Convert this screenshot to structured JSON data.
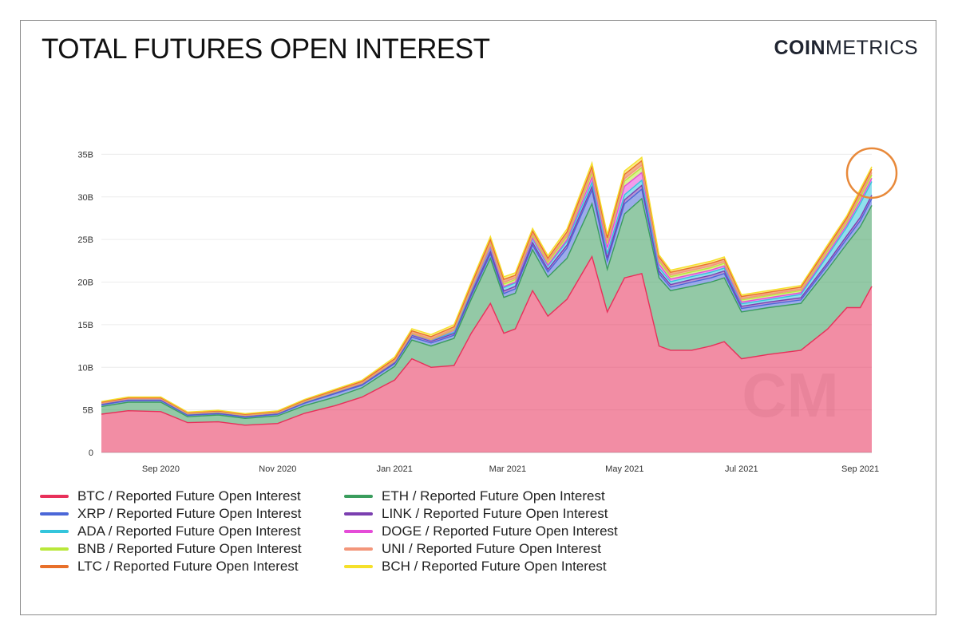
{
  "title": "TOTAL FUTURES OPEN INTEREST",
  "brand": {
    "part1": "COIN",
    "part2": "METRICS"
  },
  "watermark": "CM",
  "chart_data": {
    "type": "area",
    "stacked": true,
    "x": [
      "2020-08-01",
      "2020-08-15",
      "2020-09-01",
      "2020-09-15",
      "2020-10-01",
      "2020-10-15",
      "2020-11-01",
      "2020-11-15",
      "2020-12-01",
      "2020-12-15",
      "2021-01-01",
      "2021-01-10",
      "2021-01-20",
      "2021-02-01",
      "2021-02-10",
      "2021-02-20",
      "2021-02-27",
      "2021-03-05",
      "2021-03-14",
      "2021-03-22",
      "2021-04-01",
      "2021-04-14",
      "2021-04-22",
      "2021-05-01",
      "2021-05-10",
      "2021-05-19",
      "2021-05-25",
      "2021-06-05",
      "2021-06-15",
      "2021-06-22",
      "2021-07-01",
      "2021-07-15",
      "2021-08-01",
      "2021-08-15",
      "2021-08-25",
      "2021-09-01",
      "2021-09-07"
    ],
    "series": [
      {
        "name": "BTC / Reported Future Open Interest",
        "color": "#e8305a",
        "values": [
          4.5,
          4.9,
          4.8,
          3.5,
          3.6,
          3.2,
          3.4,
          4.6,
          5.5,
          6.5,
          8.5,
          11,
          10,
          10.2,
          14,
          17.5,
          14,
          14.5,
          19,
          16,
          18,
          23,
          16.5,
          20.5,
          21,
          12.5,
          12,
          12,
          12.5,
          13,
          11,
          11.5,
          12,
          14.5,
          17,
          17,
          19.5
        ]
      },
      {
        "name": "ETH / Reported Future Open Interest",
        "color": "#3a9d5d",
        "values": [
          0.9,
          1.0,
          1.1,
          0.7,
          0.8,
          0.8,
          0.9,
          0.9,
          1.0,
          1.1,
          1.6,
          2.2,
          2.5,
          3.2,
          4.0,
          5.3,
          4.2,
          4.2,
          4.8,
          4.6,
          4.8,
          6.2,
          5.0,
          7.5,
          8.8,
          8.0,
          7.0,
          7.5,
          7.5,
          7.5,
          5.5,
          5.5,
          5.5,
          7.0,
          7.5,
          9.5,
          9.5
        ]
      },
      {
        "name": "XRP / Reported Future Open Interest",
        "color": "#4b67d8",
        "values": [
          0.18,
          0.2,
          0.2,
          0.15,
          0.15,
          0.15,
          0.18,
          0.28,
          0.4,
          0.3,
          0.32,
          0.35,
          0.35,
          0.35,
          0.4,
          0.5,
          0.45,
          0.5,
          0.55,
          0.6,
          1.2,
          1.6,
          1.0,
          1.2,
          1.1,
          0.5,
          0.4,
          0.5,
          0.5,
          0.5,
          0.4,
          0.4,
          0.4,
          0.5,
          0.6,
          0.7,
          0.8
        ]
      },
      {
        "name": "LINK / Reported Future Open Interest",
        "color": "#7b3fb0",
        "values": [
          0.1,
          0.1,
          0.1,
          0.1,
          0.1,
          0.1,
          0.1,
          0.1,
          0.12,
          0.12,
          0.15,
          0.2,
          0.2,
          0.22,
          0.25,
          0.3,
          0.3,
          0.3,
          0.3,
          0.3,
          0.35,
          0.4,
          0.35,
          0.45,
          0.45,
          0.3,
          0.3,
          0.3,
          0.3,
          0.3,
          0.25,
          0.25,
          0.25,
          0.3,
          0.35,
          0.4,
          0.4
        ]
      },
      {
        "name": "ADA / Reported Future Open Interest",
        "color": "#34c5dc",
        "values": [
          0.05,
          0.05,
          0.05,
          0.05,
          0.05,
          0.05,
          0.05,
          0.05,
          0.06,
          0.06,
          0.08,
          0.1,
          0.1,
          0.15,
          0.3,
          0.4,
          0.4,
          0.4,
          0.45,
          0.4,
          0.45,
          0.5,
          0.5,
          0.6,
          0.6,
          0.4,
          0.35,
          0.35,
          0.35,
          0.35,
          0.3,
          0.3,
          0.4,
          0.8,
          1.0,
          1.6,
          1.6
        ]
      },
      {
        "name": "DOGE / Reported Future Open Interest",
        "color": "#e54cd8",
        "values": [
          0.02,
          0.02,
          0.02,
          0.02,
          0.02,
          0.02,
          0.02,
          0.02,
          0.02,
          0.02,
          0.03,
          0.04,
          0.05,
          0.2,
          0.15,
          0.15,
          0.12,
          0.1,
          0.1,
          0.1,
          0.2,
          0.6,
          0.7,
          1.0,
          0.9,
          0.4,
          0.3,
          0.25,
          0.25,
          0.25,
          0.2,
          0.2,
          0.2,
          0.25,
          0.3,
          0.35,
          0.4
        ]
      },
      {
        "name": "BNB / Reported Future Open Interest",
        "color": "#b9e83a",
        "values": [
          0.03,
          0.03,
          0.03,
          0.03,
          0.03,
          0.03,
          0.03,
          0.03,
          0.04,
          0.04,
          0.05,
          0.06,
          0.06,
          0.08,
          0.15,
          0.3,
          0.3,
          0.3,
          0.3,
          0.3,
          0.35,
          0.5,
          0.5,
          0.6,
          0.6,
          0.35,
          0.3,
          0.3,
          0.3,
          0.3,
          0.25,
          0.25,
          0.25,
          0.3,
          0.3,
          0.4,
          0.4
        ]
      },
      {
        "name": "UNI / Reported Future Open Interest",
        "color": "#f3967a",
        "values": [
          0.01,
          0.01,
          0.02,
          0.04,
          0.05,
          0.05,
          0.05,
          0.05,
          0.05,
          0.05,
          0.06,
          0.08,
          0.08,
          0.1,
          0.15,
          0.2,
          0.2,
          0.2,
          0.2,
          0.2,
          0.2,
          0.25,
          0.25,
          0.3,
          0.3,
          0.2,
          0.2,
          0.2,
          0.2,
          0.2,
          0.15,
          0.15,
          0.15,
          0.2,
          0.2,
          0.25,
          0.25
        ]
      },
      {
        "name": "LTC / Reported Future Open Interest",
        "color": "#e8702a",
        "values": [
          0.1,
          0.1,
          0.1,
          0.08,
          0.08,
          0.08,
          0.08,
          0.1,
          0.12,
          0.15,
          0.2,
          0.25,
          0.25,
          0.25,
          0.3,
          0.35,
          0.35,
          0.3,
          0.3,
          0.3,
          0.35,
          0.5,
          0.4,
          0.5,
          0.5,
          0.3,
          0.3,
          0.3,
          0.3,
          0.3,
          0.25,
          0.25,
          0.25,
          0.3,
          0.3,
          0.4,
          0.4
        ]
      },
      {
        "name": "BCH / Reported Future Open Interest",
        "color": "#f5e02a",
        "values": [
          0.1,
          0.1,
          0.1,
          0.08,
          0.08,
          0.08,
          0.08,
          0.1,
          0.12,
          0.15,
          0.2,
          0.25,
          0.25,
          0.25,
          0.3,
          0.35,
          0.3,
          0.3,
          0.3,
          0.3,
          0.35,
          0.45,
          0.4,
          0.4,
          0.4,
          0.25,
          0.25,
          0.25,
          0.25,
          0.25,
          0.2,
          0.2,
          0.2,
          0.25,
          0.25,
          0.3,
          0.3
        ]
      }
    ],
    "y_ticks": [
      "0",
      "5B",
      "10B",
      "15B",
      "20B",
      "25B",
      "30B",
      "35B"
    ],
    "ylim": [
      0,
      40
    ],
    "x_ticks": [
      "Sep 2020",
      "Nov 2020",
      "Jan 2021",
      "Mar 2021",
      "May 2021",
      "Jul 2021",
      "Sep 2021"
    ],
    "x_tick_dates": [
      "2020-09-01",
      "2020-11-01",
      "2021-01-01",
      "2021-03-01",
      "2021-05-01",
      "2021-07-01",
      "2021-09-01"
    ],
    "xlim": [
      "2020-08-01",
      "2021-09-07"
    ],
    "grid": true,
    "legend_position": "bottom",
    "annotation": {
      "type": "circle",
      "color": "#e8893a",
      "at": "2021-09-07"
    }
  },
  "legend_items": [
    {
      "label": "BTC / Reported Future Open Interest",
      "color": "#e8305a"
    },
    {
      "label": "XRP / Reported Future Open Interest",
      "color": "#4b67d8"
    },
    {
      "label": "ADA / Reported Future Open Interest",
      "color": "#34c5dc"
    },
    {
      "label": "BNB / Reported Future Open Interest",
      "color": "#b9e83a"
    },
    {
      "label": "LTC / Reported Future Open Interest",
      "color": "#e8702a"
    },
    {
      "label": "ETH / Reported Future Open Interest",
      "color": "#3a9d5d"
    },
    {
      "label": "LINK / Reported Future Open Interest",
      "color": "#7b3fb0"
    },
    {
      "label": "DOGE / Reported Future Open Interest",
      "color": "#e54cd8"
    },
    {
      "label": "UNI / Reported Future Open Interest",
      "color": "#f3967a"
    },
    {
      "label": "BCH / Reported Future Open Interest",
      "color": "#f5e02a"
    }
  ]
}
